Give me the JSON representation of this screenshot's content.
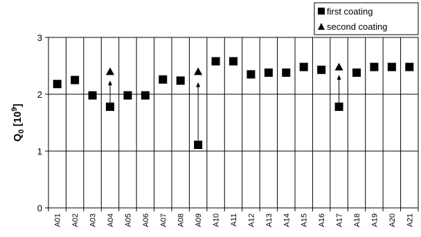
{
  "chart_data": {
    "type": "scatter",
    "title": "",
    "ylabel_main": "Q",
    "ylabel_sub": "0",
    "ylabel_unit_open": " [10",
    "ylabel_unit_exp": "9",
    "ylabel_unit_close": "]",
    "xlabel": "",
    "categories": [
      "A01",
      "A02",
      "A03",
      "A04",
      "A05",
      "A06",
      "A07",
      "A08",
      "A09",
      "A10",
      "A11",
      "A12",
      "A13",
      "A14",
      "A15",
      "A16",
      "A17",
      "A18",
      "A19",
      "A20",
      "A21"
    ],
    "ylim": [
      0,
      3
    ],
    "yticks": [
      "0",
      "1",
      "2",
      "3"
    ],
    "grid": true,
    "legend_position": "top-right",
    "series": [
      {
        "name": "first coating",
        "marker": "square",
        "values": [
          2.18,
          2.25,
          1.98,
          1.78,
          1.98,
          1.98,
          2.26,
          2.24,
          1.11,
          2.58,
          2.58,
          2.35,
          2.38,
          2.38,
          2.48,
          2.43,
          1.78,
          2.38,
          2.48,
          2.48,
          2.48
        ]
      },
      {
        "name": "second coating",
        "marker": "triangle",
        "values": [
          null,
          null,
          null,
          2.4,
          null,
          null,
          null,
          null,
          2.4,
          null,
          null,
          null,
          null,
          null,
          null,
          null,
          2.48,
          null,
          null,
          null,
          null
        ]
      }
    ],
    "arrows": [
      {
        "category": "A04",
        "from": 1.8,
        "to": 2.23
      },
      {
        "category": "A09",
        "from": 1.13,
        "to": 2.2
      },
      {
        "category": "A17",
        "from": 1.8,
        "to": 2.33
      }
    ],
    "colors": {
      "marker": "#000000",
      "grid": "#000000",
      "background": "#ffffff"
    }
  }
}
